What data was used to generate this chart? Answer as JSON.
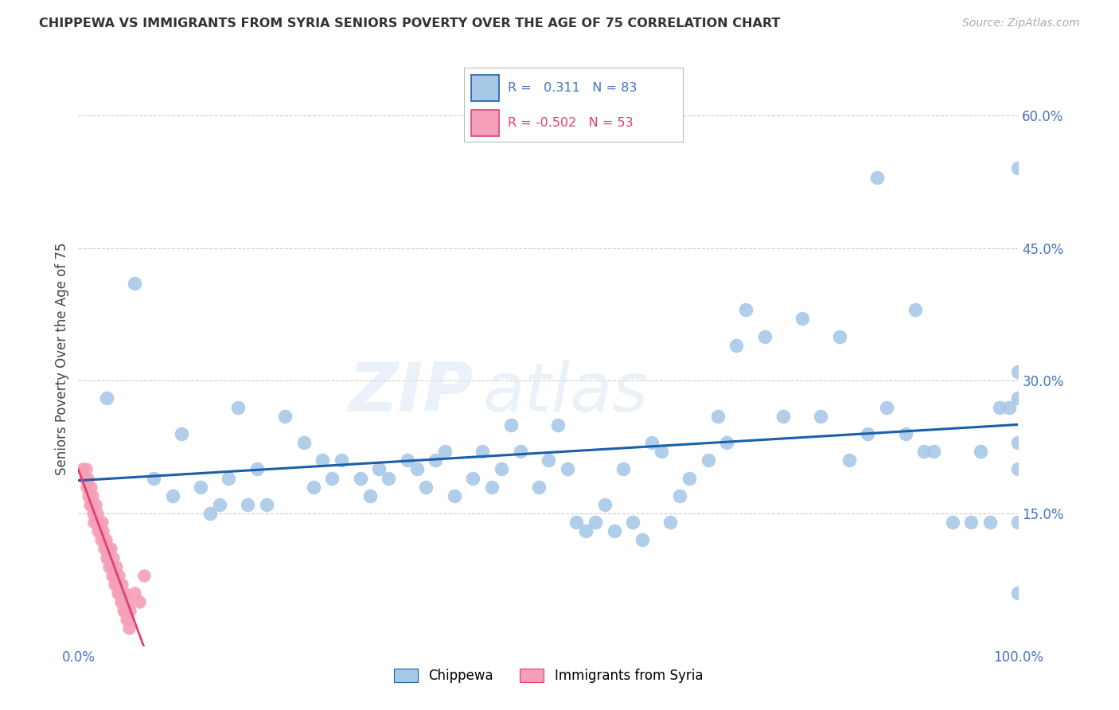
{
  "title": "CHIPPEWA VS IMMIGRANTS FROM SYRIA SENIORS POVERTY OVER THE AGE OF 75 CORRELATION CHART",
  "source": "Source: ZipAtlas.com",
  "ylabel": "Seniors Poverty Over the Age of 75",
  "xlim": [
    0.0,
    1.0
  ],
  "ylim": [
    0.0,
    0.65
  ],
  "yticks": [
    0.0,
    0.15,
    0.3,
    0.45,
    0.6
  ],
  "ytick_labels": [
    "",
    "15.0%",
    "30.0%",
    "45.0%",
    "60.0%"
  ],
  "xticks": [
    0.0,
    0.25,
    0.5,
    0.75,
    1.0
  ],
  "xtick_labels": [
    "0.0%",
    "",
    "",
    "",
    "100.0%"
  ],
  "chippewa_R": 0.311,
  "chippewa_N": 83,
  "syria_R": -0.502,
  "syria_N": 53,
  "chippewa_color": "#a8c8e8",
  "chippewa_line_color": "#1a5fa8",
  "syria_color": "#f4a0b8",
  "syria_line_color": "#e04070",
  "watermark_zip": "ZIP",
  "watermark_atlas": "atlas",
  "background_color": "#ffffff",
  "grid_color": "#cccccc",
  "chip_x": [
    0.03,
    0.06,
    0.08,
    0.1,
    0.11,
    0.13,
    0.14,
    0.15,
    0.16,
    0.17,
    0.18,
    0.19,
    0.2,
    0.22,
    0.24,
    0.25,
    0.26,
    0.27,
    0.28,
    0.3,
    0.31,
    0.32,
    0.33,
    0.35,
    0.36,
    0.37,
    0.38,
    0.39,
    0.4,
    0.42,
    0.43,
    0.44,
    0.45,
    0.46,
    0.47,
    0.49,
    0.5,
    0.51,
    0.52,
    0.53,
    0.54,
    0.55,
    0.56,
    0.57,
    0.58,
    0.59,
    0.6,
    0.61,
    0.62,
    0.63,
    0.64,
    0.65,
    0.67,
    0.68,
    0.69,
    0.7,
    0.71,
    0.73,
    0.75,
    0.77,
    0.79,
    0.81,
    0.82,
    0.84,
    0.85,
    0.86,
    0.88,
    0.89,
    0.9,
    0.91,
    0.93,
    0.95,
    0.96,
    0.97,
    0.98,
    0.99,
    1.0,
    1.0,
    1.0,
    1.0,
    1.0,
    1.0,
    1.0
  ],
  "chip_y": [
    0.28,
    0.41,
    0.19,
    0.17,
    0.24,
    0.18,
    0.15,
    0.16,
    0.19,
    0.27,
    0.16,
    0.2,
    0.16,
    0.26,
    0.23,
    0.18,
    0.21,
    0.19,
    0.21,
    0.19,
    0.17,
    0.2,
    0.19,
    0.21,
    0.2,
    0.18,
    0.21,
    0.22,
    0.17,
    0.19,
    0.22,
    0.18,
    0.2,
    0.25,
    0.22,
    0.18,
    0.21,
    0.25,
    0.2,
    0.14,
    0.13,
    0.14,
    0.16,
    0.13,
    0.2,
    0.14,
    0.12,
    0.23,
    0.22,
    0.14,
    0.17,
    0.19,
    0.21,
    0.26,
    0.23,
    0.34,
    0.38,
    0.35,
    0.26,
    0.37,
    0.26,
    0.35,
    0.21,
    0.24,
    0.53,
    0.27,
    0.24,
    0.38,
    0.22,
    0.22,
    0.14,
    0.14,
    0.22,
    0.14,
    0.27,
    0.27,
    0.14,
    0.2,
    0.23,
    0.28,
    0.31,
    0.54,
    0.06
  ],
  "syr_x": [
    0.005,
    0.007,
    0.008,
    0.009,
    0.01,
    0.011,
    0.012,
    0.013,
    0.014,
    0.015,
    0.016,
    0.017,
    0.018,
    0.019,
    0.02,
    0.021,
    0.022,
    0.023,
    0.024,
    0.025,
    0.026,
    0.027,
    0.028,
    0.029,
    0.03,
    0.031,
    0.032,
    0.033,
    0.034,
    0.035,
    0.036,
    0.037,
    0.038,
    0.039,
    0.04,
    0.041,
    0.042,
    0.043,
    0.044,
    0.045,
    0.046,
    0.047,
    0.048,
    0.049,
    0.05,
    0.051,
    0.052,
    0.053,
    0.054,
    0.055,
    0.06,
    0.065,
    0.07
  ],
  "syr_y": [
    0.2,
    0.19,
    0.2,
    0.18,
    0.19,
    0.17,
    0.16,
    0.18,
    0.16,
    0.17,
    0.15,
    0.14,
    0.16,
    0.14,
    0.15,
    0.13,
    0.14,
    0.13,
    0.12,
    0.14,
    0.13,
    0.12,
    0.11,
    0.12,
    0.1,
    0.11,
    0.1,
    0.09,
    0.11,
    0.09,
    0.08,
    0.1,
    0.08,
    0.07,
    0.09,
    0.07,
    0.06,
    0.08,
    0.06,
    0.05,
    0.07,
    0.05,
    0.04,
    0.06,
    0.04,
    0.03,
    0.05,
    0.03,
    0.02,
    0.04,
    0.06,
    0.05,
    0.08
  ]
}
